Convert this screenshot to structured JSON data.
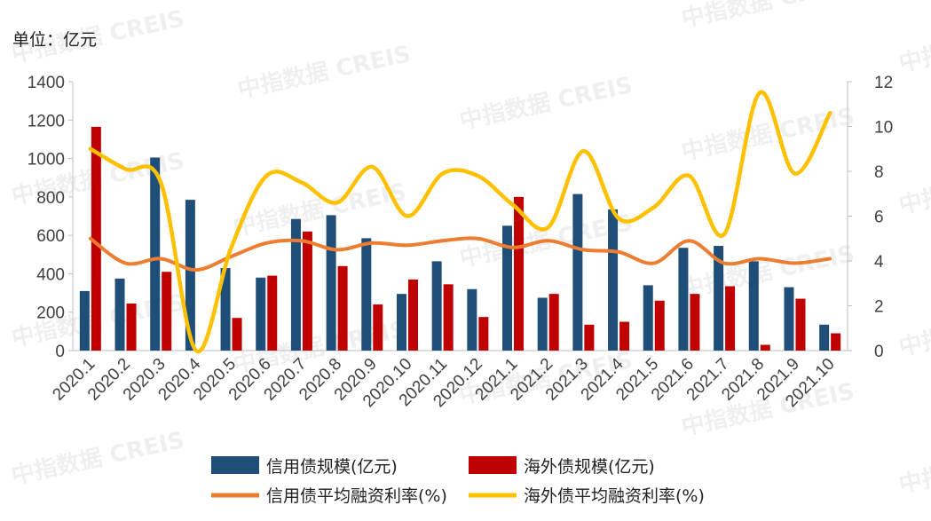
{
  "unit_label": "单位：亿元",
  "watermark": "中指数据 CREIS",
  "chart_data": {
    "type": "bar+line",
    "categories": [
      "2020.1",
      "2020.2",
      "2020.3",
      "2020.4",
      "2020.5",
      "2020.6",
      "2020.7",
      "2020.8",
      "2020.9",
      "2020.10",
      "2020.11",
      "2020.12",
      "2021.1",
      "2021.2",
      "2021.3",
      "2021.4",
      "2021.5",
      "2021.6",
      "2021.7",
      "2021.8",
      "2021.9",
      "2021.10"
    ],
    "left_axis": {
      "min": 0,
      "max": 1400,
      "ticks": [
        "0",
        "200",
        "400",
        "600",
        "800",
        "1000",
        "1200",
        "1400"
      ]
    },
    "right_axis": {
      "min": 0,
      "max": 12,
      "ticks": [
        "0",
        "2",
        "4",
        "6",
        "8",
        "10",
        "12"
      ]
    },
    "bar_series": [
      {
        "name": "信用债规模(亿元)",
        "color": "#1f4e79",
        "axis": "left",
        "values": [
          310,
          375,
          1005,
          785,
          430,
          380,
          685,
          705,
          585,
          295,
          465,
          320,
          650,
          275,
          815,
          735,
          340,
          535,
          545,
          465,
          330,
          135
        ]
      },
      {
        "name": "海外债规模(亿元)",
        "color": "#c00000",
        "axis": "left",
        "values": [
          1165,
          245,
          410,
          0,
          170,
          390,
          620,
          440,
          240,
          370,
          345,
          175,
          800,
          295,
          135,
          150,
          260,
          295,
          335,
          30,
          270,
          90
        ]
      }
    ],
    "line_series": [
      {
        "name": "信用债平均融资利率(%)",
        "color": "#ed7d31",
        "axis": "right",
        "values": [
          5.0,
          3.9,
          4.1,
          3.6,
          4.2,
          4.8,
          4.9,
          4.5,
          4.8,
          4.7,
          4.9,
          5.0,
          4.6,
          4.9,
          4.5,
          4.4,
          3.9,
          4.9,
          3.9,
          4.1,
          3.9,
          4.1
        ]
      },
      {
        "name": "海外债平均融资利率(%)",
        "color": "#ffc000",
        "axis": "right",
        "values": [
          9.0,
          8.1,
          7.5,
          0.0,
          4.6,
          7.8,
          7.5,
          6.6,
          8.2,
          6.0,
          7.9,
          7.8,
          6.5,
          5.5,
          8.9,
          5.9,
          6.4,
          7.8,
          5.2,
          11.5,
          7.9,
          10.6
        ]
      }
    ],
    "legend": [
      {
        "label": "信用债规模(亿元)",
        "kind": "bar",
        "color": "#1f4e79"
      },
      {
        "label": "海外债规模(亿元)",
        "kind": "bar",
        "color": "#c00000"
      },
      {
        "label": "信用债平均融资利率(%)",
        "kind": "line",
        "color": "#ed7d31"
      },
      {
        "label": "海外债平均融资利率(%)",
        "kind": "line",
        "color": "#ffc000"
      }
    ]
  }
}
